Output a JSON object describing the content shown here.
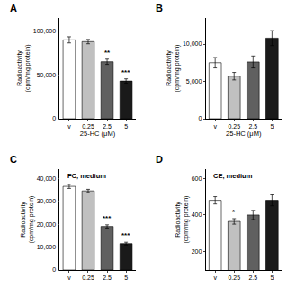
{
  "chart_data": [
    {
      "type": "bar",
      "panel_label": "A",
      "xlabel": "25-HC (μM)",
      "ylabel": "Radioactivity\n(cpm/mg protein)",
      "categories": [
        "v",
        "0.25",
        "2.5",
        "5"
      ],
      "values": [
        90000,
        88000,
        65000,
        43000
      ],
      "errors": [
        3500,
        2500,
        3000,
        2500
      ],
      "colors": [
        "white",
        "#c0c0c0",
        "#606060",
        "#1a1a1a"
      ],
      "ylim": [
        0,
        115000
      ],
      "yticks": [
        0,
        {
          "value": 50000,
          "label": "50,000"
        },
        {
          "value": 100000,
          "label": "100,000"
        }
      ],
      "significance": [
        null,
        null,
        "**",
        "***"
      ],
      "grid": false
    },
    {
      "type": "bar",
      "panel_label": "B",
      "xlabel": "25-HC (μM)",
      "ylabel": "Radioactivity\n(cpm/mg protein)",
      "categories": [
        "v",
        "0.25",
        "2.5",
        "5"
      ],
      "values": [
        7500,
        5700,
        7600,
        10800
      ],
      "errors": [
        700,
        500,
        800,
        1000
      ],
      "colors": [
        "white",
        "#c0c0c0",
        "#606060",
        "#1a1a1a"
      ],
      "ylim": [
        0,
        13500
      ],
      "yticks": [
        0,
        {
          "value": 5000,
          "label": "5,000"
        },
        {
          "value": 10000,
          "label": "10,000"
        }
      ],
      "grid": false
    },
    {
      "type": "bar",
      "panel_label": "C",
      "title": "FC, medium",
      "ylabel": "Radioactivity\n(cpm/mg protein)",
      "categories": [
        "v",
        "0.25",
        "2.5",
        "5"
      ],
      "values": [
        36500,
        34500,
        19000,
        11500
      ],
      "errors": [
        900,
        700,
        700,
        600
      ],
      "colors": [
        "white",
        "#c0c0c0",
        "#606060",
        "#1a1a1a"
      ],
      "ylim": [
        0,
        44000
      ],
      "yticks": [
        0,
        {
          "value": 10000,
          "label": "10,000"
        },
        {
          "value": 20000,
          "label": "20,000"
        },
        {
          "value": 30000,
          "label": "30,000"
        },
        {
          "value": 40000,
          "label": "40,000"
        }
      ],
      "significance": [
        null,
        null,
        "***",
        "***"
      ],
      "grid": false
    },
    {
      "type": "bar",
      "panel_label": "D",
      "title": "CE, medium",
      "ylabel": "Radioactivity\n(cpm/mg protein)",
      "categories": [
        "v",
        "0.25",
        "2.5",
        "5"
      ],
      "values": [
        480,
        365,
        400,
        480
      ],
      "errors": [
        20,
        15,
        25,
        30
      ],
      "colors": [
        "white",
        "#c0c0c0",
        "#606060",
        "#1a1a1a"
      ],
      "ylim": [
        100,
        650
      ],
      "yticks": [
        200,
        400,
        600
      ],
      "significance": [
        null,
        "*",
        null,
        null
      ],
      "grid": false
    }
  ]
}
